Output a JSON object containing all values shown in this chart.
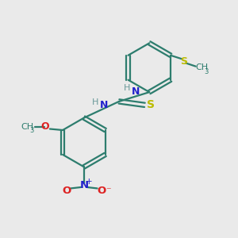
{
  "bg_color": "#eaeaea",
  "bond_color": "#2d7d6e",
  "N_color": "#2222cc",
  "O_color": "#dd2222",
  "S_color": "#bbbb00",
  "H_color": "#6a9a9a",
  "figsize": [
    3.0,
    3.0
  ],
  "dpi": 100,
  "xlim": [
    0,
    10
  ],
  "ylim": [
    0,
    10
  ]
}
